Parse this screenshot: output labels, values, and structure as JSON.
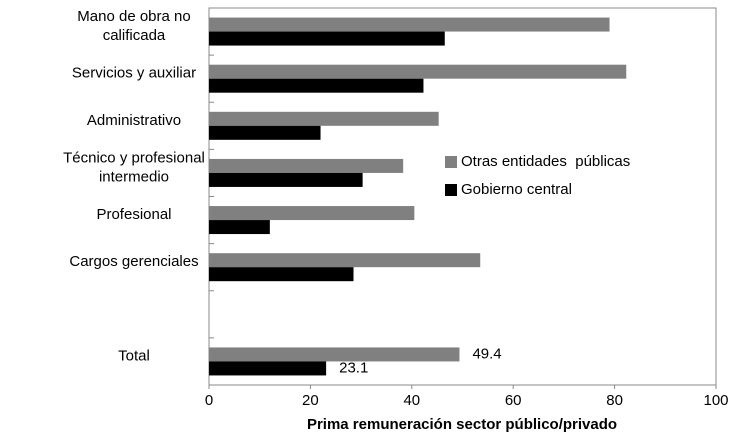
{
  "chart_data": {
    "type": "hbar",
    "x_label": "Prima remuneración  sector público/privado",
    "categories": [
      "Mano de obra no calificada",
      "Servicios y auxiliar",
      "Administrativo",
      "Técnico y profesional intermedio",
      "Profesional",
      "Cargos gerenciales",
      null,
      "Total"
    ],
    "series": [
      {
        "name": "Otras entidades  públicas",
        "color": "#808080",
        "values": [
          79,
          82.3,
          45.3,
          38.3,
          40.5,
          53.5,
          null,
          49.4
        ],
        "value_labels": [
          null,
          null,
          null,
          null,
          null,
          null,
          null,
          "49.4"
        ]
      },
      {
        "name": "Gobierno central",
        "color": "#000000",
        "values": [
          46.5,
          42.3,
          22,
          30.3,
          12,
          28.5,
          null,
          23.1
        ],
        "value_labels": [
          null,
          null,
          null,
          null,
          null,
          null,
          null,
          "23.1"
        ]
      }
    ],
    "xlim": [
      0,
      100
    ],
    "xticks": [
      0,
      20,
      40,
      60,
      80,
      100
    ],
    "legend": "center-right",
    "grid": false
  }
}
